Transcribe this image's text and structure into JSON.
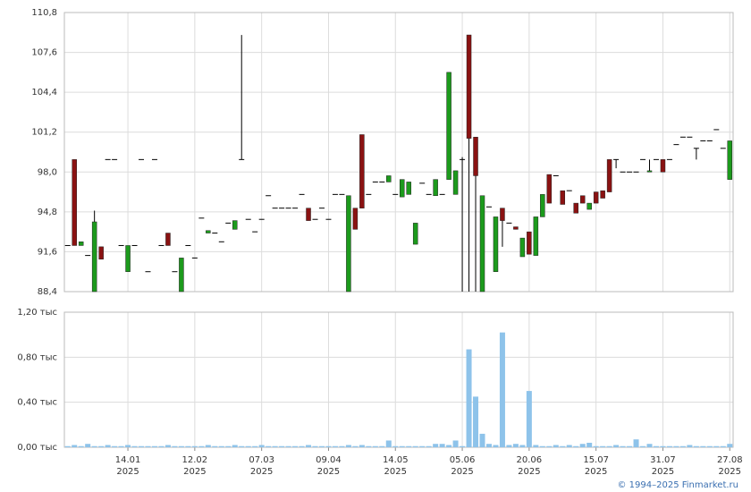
{
  "chart_data": [
    {
      "type": "candlestick",
      "up_color": "#1c9a1c",
      "down_color": "#8a1212",
      "grid": true,
      "ylim": [
        88.4,
        110.8
      ],
      "yticks": [
        {
          "value": 88.4,
          "label": "88,4"
        },
        {
          "value": 91.6,
          "label": "91,6"
        },
        {
          "value": 94.8,
          "label": "94,8"
        },
        {
          "value": 98.0,
          "label": "98,0"
        },
        {
          "value": 101.2,
          "label": "101,2"
        },
        {
          "value": 104.4,
          "label": "104,4"
        },
        {
          "value": 107.6,
          "label": "107,6"
        },
        {
          "value": 110.8,
          "label": "110,8"
        }
      ],
      "open": [
        92.1,
        99.0,
        92.1,
        91.3,
        88.4,
        92.0,
        99.0,
        99.0,
        92.1,
        90.0,
        92.1,
        99.0,
        90.0,
        99.0,
        92.1,
        93.1,
        90.0,
        88.4,
        92.1,
        91.1,
        94.3,
        93.1,
        93.1,
        92.4,
        93.9,
        93.4,
        99.0,
        94.2,
        93.2,
        94.2,
        96.1,
        95.1,
        95.1,
        95.1,
        95.1,
        96.2,
        95.1,
        94.2,
        95.1,
        94.2,
        96.2,
        96.2,
        88.4,
        95.1,
        101.0,
        96.2,
        97.2,
        97.2,
        97.2,
        96.2,
        96.0,
        96.2,
        92.2,
        97.1,
        96.2,
        96.1,
        96.2,
        97.4,
        96.2,
        99.0,
        109.0,
        100.8,
        88.4,
        95.2,
        90.0,
        95.1,
        93.9,
        93.6,
        91.2,
        93.2,
        91.3,
        94.4,
        97.8,
        97.7,
        96.5,
        96.5,
        95.5,
        96.1,
        95.0,
        96.4,
        96.5,
        99.0,
        99.0,
        98.0,
        98.0,
        98.0,
        99.0,
        98.0,
        99.0,
        99.0,
        99.0,
        100.2,
        100.8,
        100.8,
        99.9,
        100.5,
        100.5,
        101.4,
        99.9,
        97.4
      ],
      "high": [
        92.1,
        99.0,
        92.4,
        91.3,
        94.9,
        92.0,
        99.0,
        99.0,
        92.1,
        92.1,
        92.1,
        99.0,
        90.0,
        99.0,
        92.1,
        93.1,
        90.0,
        91.1,
        92.1,
        91.1,
        94.3,
        93.3,
        93.1,
        92.4,
        93.9,
        94.1,
        109.0,
        94.2,
        93.2,
        94.2,
        96.1,
        95.1,
        95.1,
        95.1,
        95.1,
        96.2,
        95.1,
        94.2,
        95.1,
        94.2,
        96.2,
        96.2,
        96.1,
        95.1,
        101.0,
        96.2,
        97.2,
        97.2,
        97.7,
        96.2,
        97.4,
        97.2,
        93.9,
        97.1,
        96.2,
        97.4,
        96.2,
        106.0,
        98.1,
        99.2,
        109.0,
        100.8,
        96.1,
        95.2,
        94.4,
        95.1,
        93.9,
        93.6,
        92.7,
        93.2,
        94.4,
        96.2,
        97.8,
        97.7,
        96.5,
        96.5,
        95.5,
        96.1,
        95.5,
        96.4,
        96.5,
        99.0,
        99.0,
        98.0,
        98.0,
        98.0,
        99.0,
        99.0,
        99.0,
        99.0,
        99.0,
        100.2,
        100.8,
        100.8,
        99.9,
        100.5,
        100.5,
        101.4,
        99.9,
        100.5
      ],
      "low": [
        92.1,
        92.1,
        92.1,
        91.3,
        88.4,
        91.0,
        99.0,
        99.0,
        92.1,
        90.0,
        92.1,
        99.0,
        90.0,
        99.0,
        92.1,
        92.1,
        90.0,
        88.4,
        92.1,
        91.1,
        94.3,
        93.1,
        93.1,
        92.4,
        93.9,
        93.4,
        99.0,
        94.2,
        93.2,
        94.2,
        96.1,
        95.1,
        95.1,
        95.1,
        95.1,
        96.2,
        94.1,
        94.2,
        95.1,
        94.2,
        96.2,
        96.2,
        88.4,
        93.4,
        95.1,
        96.2,
        97.2,
        97.2,
        97.2,
        96.2,
        96.0,
        96.2,
        92.2,
        97.1,
        96.2,
        96.1,
        96.2,
        97.4,
        96.2,
        88.4,
        88.4,
        88.4,
        88.4,
        95.2,
        90.0,
        92.0,
        93.9,
        93.4,
        91.2,
        91.4,
        91.3,
        94.4,
        95.5,
        97.7,
        95.4,
        96.5,
        94.7,
        95.5,
        95.0,
        95.5,
        95.9,
        96.4,
        98.3,
        98.0,
        98.0,
        98.0,
        99.0,
        98.0,
        99.0,
        98.0,
        99.0,
        100.2,
        100.8,
        100.8,
        99.0,
        100.5,
        100.5,
        101.4,
        99.9,
        97.4
      ],
      "close": [
        92.1,
        92.1,
        92.4,
        91.3,
        94.0,
        91.0,
        99.0,
        99.0,
        92.1,
        92.1,
        92.1,
        99.0,
        90.0,
        99.0,
        92.1,
        92.1,
        90.0,
        91.1,
        92.1,
        91.1,
        94.3,
        93.3,
        93.1,
        92.4,
        93.9,
        94.1,
        99.0,
        94.2,
        93.2,
        94.2,
        96.1,
        95.1,
        95.1,
        95.1,
        95.1,
        96.2,
        94.1,
        94.2,
        95.1,
        94.2,
        96.2,
        96.2,
        96.1,
        93.4,
        95.1,
        96.2,
        97.2,
        97.2,
        97.7,
        96.2,
        97.4,
        97.2,
        93.9,
        97.1,
        96.2,
        97.4,
        96.2,
        106.0,
        98.1,
        99.0,
        100.7,
        97.7,
        96.1,
        95.2,
        94.4,
        94.1,
        93.9,
        93.4,
        92.7,
        91.4,
        94.4,
        96.2,
        95.5,
        97.7,
        95.4,
        96.5,
        94.7,
        95.5,
        95.5,
        95.5,
        95.9,
        96.4,
        99.0,
        98.0,
        98.0,
        98.0,
        99.0,
        98.1,
        99.0,
        98.0,
        99.0,
        100.2,
        100.8,
        100.8,
        99.9,
        100.5,
        100.5,
        101.4,
        99.9,
        100.5
      ]
    },
    {
      "type": "bar",
      "color": "#8ec3ea",
      "grid": true,
      "ylim": [
        0,
        1.2
      ],
      "yticks": [
        {
          "value": 0,
          "label": "0,00 тыс"
        },
        {
          "value": 0.4,
          "label": "0,40 тыс"
        },
        {
          "value": 0.8,
          "label": "0,80 тыс"
        },
        {
          "value": 1.2,
          "label": "1,20 тыс"
        }
      ],
      "categories": [
        null,
        null,
        null,
        null,
        null,
        null,
        null,
        null,
        null,
        "14.01 2025",
        null,
        null,
        null,
        null,
        null,
        null,
        null,
        null,
        null,
        "12.02 2025",
        null,
        null,
        null,
        null,
        null,
        null,
        null,
        null,
        null,
        "07.03 2025",
        null,
        null,
        null,
        null,
        null,
        null,
        null,
        null,
        null,
        "09.04 2025",
        null,
        null,
        null,
        null,
        null,
        null,
        null,
        null,
        null,
        "14.05 2025",
        null,
        null,
        null,
        null,
        null,
        null,
        null,
        null,
        null,
        "05.06 2025",
        null,
        null,
        null,
        null,
        null,
        null,
        null,
        null,
        null,
        "20.06 2025",
        null,
        null,
        null,
        null,
        null,
        null,
        null,
        null,
        null,
        "15.07 2025",
        null,
        null,
        null,
        null,
        null,
        null,
        null,
        null,
        null,
        "31.07 2025",
        null,
        null,
        null,
        null,
        null,
        null,
        null,
        null,
        null,
        "27.08 2025"
      ],
      "values": [
        0.01,
        0.02,
        0.01,
        0.03,
        0.01,
        0.01,
        0.02,
        0.01,
        0.01,
        0.02,
        0.01,
        0.01,
        0.01,
        0.01,
        0.01,
        0.02,
        0.01,
        0.01,
        0.01,
        0.01,
        0.01,
        0.02,
        0.01,
        0.01,
        0.01,
        0.02,
        0.01,
        0.01,
        0.01,
        0.02,
        0.01,
        0.01,
        0.01,
        0.01,
        0.01,
        0.01,
        0.02,
        0.01,
        0.01,
        0.01,
        0.01,
        0.01,
        0.02,
        0.01,
        0.02,
        0.01,
        0.01,
        0.01,
        0.06,
        0.01,
        0.01,
        0.01,
        0.01,
        0.01,
        0.01,
        0.03,
        0.03,
        0.02,
        0.06,
        0.01,
        0.87,
        0.45,
        0.12,
        0.03,
        0.02,
        1.02,
        0.02,
        0.03,
        0.02,
        0.5,
        0.02,
        0.01,
        0.01,
        0.02,
        0.01,
        0.02,
        0.01,
        0.03,
        0.04,
        0.01,
        0.01,
        0.01,
        0.02,
        0.01,
        0.01,
        0.07,
        0.01,
        0.03,
        0.01,
        0.01,
        0.01,
        0.01,
        0.01,
        0.02,
        0.01,
        0.01,
        0.01,
        0.01,
        0.01,
        0.03
      ]
    }
  ],
  "footer": "© 1994–2025 Finmarket.ru"
}
